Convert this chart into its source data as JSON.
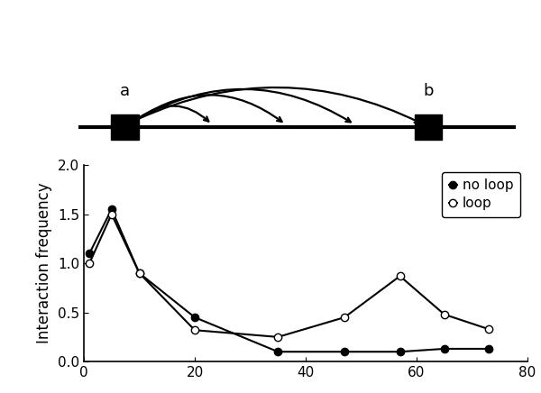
{
  "no_loop_x": [
    1,
    5,
    10,
    20,
    35,
    47,
    57,
    65,
    73
  ],
  "no_loop_y": [
    1.1,
    1.55,
    0.9,
    0.45,
    0.1,
    0.1,
    0.1,
    0.13,
    0.13
  ],
  "loop_x": [
    1,
    5,
    10,
    20,
    35,
    47,
    57,
    65,
    73
  ],
  "loop_y": [
    1.0,
    1.5,
    0.9,
    0.32,
    0.25,
    0.45,
    0.87,
    0.48,
    0.33
  ],
  "ylabel": "Interaction frequency",
  "xlim": [
    0,
    80
  ],
  "ylim": [
    0.0,
    2.0
  ],
  "yticks": [
    0.0,
    0.5,
    1.0,
    1.5,
    2.0
  ],
  "xticks": [
    0,
    20,
    40,
    60,
    80
  ],
  "legend_no_loop": "no loop",
  "legend_loop": "loop",
  "line_color": "#000000",
  "bg_color": "#ffffff",
  "label_a": "a",
  "label_b": "b"
}
